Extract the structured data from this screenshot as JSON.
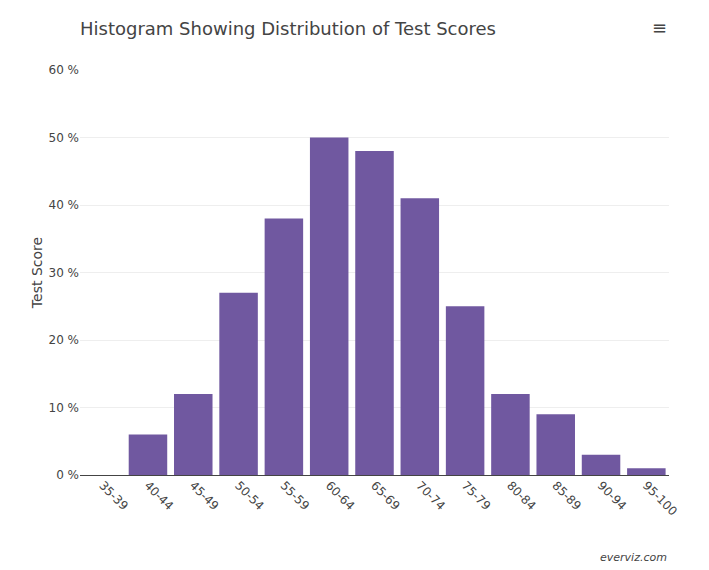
{
  "chart_data": {
    "type": "bar",
    "title": "Histogram Showing Distribution of Test Scores",
    "ylabel": "Test Score",
    "categories": [
      "35-39",
      "40-44",
      "45-49",
      "50-54",
      "55-59",
      "60-64",
      "65-69",
      "70-74",
      "75-79",
      "80-84",
      "85-89",
      "90-94",
      "95-100"
    ],
    "values": [
      0,
      6,
      12,
      27,
      38,
      50,
      48,
      41,
      25,
      12,
      9,
      3,
      1
    ],
    "color": "#7058a0",
    "ylim": [
      0,
      60
    ],
    "yticks": [
      {
        "value": 0,
        "label": "0 %"
      },
      {
        "value": 10,
        "label": "10 %"
      },
      {
        "value": 20,
        "label": "20 %"
      },
      {
        "value": 30,
        "label": "30 %"
      },
      {
        "value": 40,
        "label": "40 %"
      },
      {
        "value": 50,
        "label": "50 %"
      },
      {
        "value": 60,
        "label": "60 %"
      }
    ],
    "grid": true,
    "annotations": [
      "everviz.com",
      "≡"
    ]
  }
}
